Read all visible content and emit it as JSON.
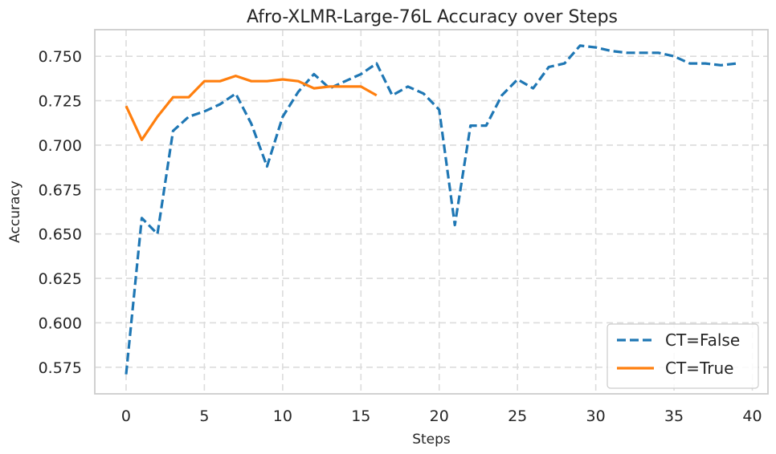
{
  "chart_data": {
    "type": "line",
    "title": "Afro-XLMR-Large-76L Accuracy over Steps",
    "xlabel": "Steps",
    "ylabel": "Accuracy",
    "xlim": [
      -2,
      41
    ],
    "ylim": [
      0.56,
      0.765
    ],
    "xticks": [
      0,
      5,
      10,
      15,
      20,
      25,
      30,
      35,
      40
    ],
    "yticks": [
      0.575,
      0.6,
      0.625,
      0.65,
      0.675,
      0.7,
      0.725,
      0.75
    ],
    "ytick_labels": [
      "0.575",
      "0.600",
      "0.625",
      "0.650",
      "0.675",
      "0.700",
      "0.725",
      "0.750"
    ],
    "grid": true,
    "legend_position": "lower-right",
    "series": [
      {
        "name": "CT=False",
        "color": "#1f77b4",
        "style": "dashed",
        "x": [
          0,
          1,
          2,
          3,
          4,
          5,
          6,
          7,
          8,
          9,
          10,
          11,
          12,
          13,
          14,
          15,
          16,
          17,
          18,
          19,
          20,
          21,
          22,
          23,
          24,
          25,
          26,
          27,
          28,
          29,
          30,
          31,
          32,
          33,
          34,
          35,
          36,
          37,
          38,
          39
        ],
        "y": [
          0.571,
          0.659,
          0.65,
          0.708,
          0.716,
          0.719,
          0.723,
          0.729,
          0.712,
          0.688,
          0.716,
          0.73,
          0.74,
          0.732,
          0.736,
          0.74,
          0.746,
          0.728,
          0.733,
          0.729,
          0.72,
          0.655,
          0.711,
          0.711,
          0.728,
          0.737,
          0.732,
          0.744,
          0.746,
          0.756,
          0.755,
          0.753,
          0.752,
          0.752,
          0.752,
          0.75,
          0.746,
          0.746,
          0.745,
          0.746
        ]
      },
      {
        "name": "CT=True",
        "color": "#ff7f0e",
        "style": "solid",
        "x": [
          0,
          1,
          2,
          3,
          4,
          5,
          6,
          7,
          8,
          9,
          10,
          11,
          12,
          13,
          14,
          15,
          16
        ],
        "y": [
          0.722,
          0.703,
          0.716,
          0.727,
          0.727,
          0.736,
          0.736,
          0.739,
          0.736,
          0.736,
          0.737,
          0.736,
          0.732,
          0.733,
          0.733,
          0.733,
          0.728
        ]
      }
    ]
  }
}
